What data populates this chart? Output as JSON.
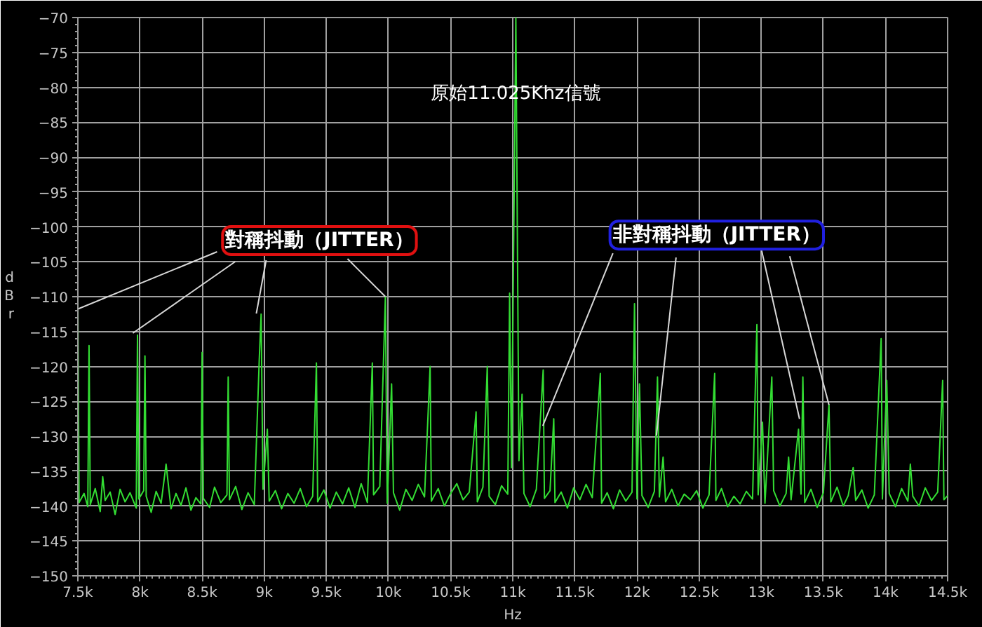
{
  "chart_data": {
    "type": "line",
    "xlabel": "Hz",
    "ylabel": "dBr",
    "xlim": [
      7500,
      14500
    ],
    "ylim": [
      -150,
      -70
    ],
    "xticks": [
      {
        "value": 7500,
        "label": "7.5k"
      },
      {
        "value": 8000,
        "label": "8k"
      },
      {
        "value": 8500,
        "label": "8.5k"
      },
      {
        "value": 9000,
        "label": "9k"
      },
      {
        "value": 9500,
        "label": "9.5k"
      },
      {
        "value": 10000,
        "label": "10k"
      },
      {
        "value": 10500,
        "label": "10.5k"
      },
      {
        "value": 11000,
        "label": "11k"
      },
      {
        "value": 11500,
        "label": "11.5k"
      },
      {
        "value": 12000,
        "label": "12k"
      },
      {
        "value": 12500,
        "label": "12.5k"
      },
      {
        "value": 13000,
        "label": "13k"
      },
      {
        "value": 13500,
        "label": "13.5k"
      },
      {
        "value": 14000,
        "label": "14k"
      },
      {
        "value": 14500,
        "label": "14.5k"
      }
    ],
    "yticks": [
      -70,
      -75,
      -80,
      -85,
      -90,
      -95,
      -100,
      -105,
      -110,
      -115,
      -120,
      -125,
      -130,
      -135,
      -140,
      -145,
      -150
    ],
    "grid": true,
    "color": "#33dd33",
    "x": [
      7500,
      7510,
      7550,
      7580,
      7590,
      7600,
      7640,
      7680,
      7700,
      7720,
      7760,
      7800,
      7840,
      7880,
      7920,
      7970,
      7980,
      7990,
      8030,
      8040,
      8050,
      8090,
      8130,
      8170,
      8210,
      8250,
      8290,
      8330,
      8370,
      8410,
      8450,
      8490,
      8500,
      8510,
      8560,
      8600,
      8650,
      8700,
      8710,
      8720,
      8770,
      8820,
      8870,
      8920,
      8960,
      8975,
      8990,
      9025,
      9040,
      9090,
      9140,
      9190,
      9240,
      9290,
      9340,
      9390,
      9420,
      9430,
      9480,
      9530,
      9580,
      9630,
      9680,
      9730,
      9780,
      9830,
      9870,
      9880,
      9930,
      9975,
      9990,
      10025,
      10040,
      10090,
      10140,
      10190,
      10240,
      10290,
      10335,
      10345,
      10400,
      10450,
      10500,
      10550,
      10600,
      10650,
      10705,
      10715,
      10760,
      10795,
      10810,
      10860,
      10910,
      10960,
      10975,
      10990,
      11025,
      11050,
      11075,
      11090,
      11140,
      11190,
      11245,
      11255,
      11300,
      11330,
      11340,
      11390,
      11440,
      11490,
      11540,
      11590,
      11640,
      11705,
      11715,
      11760,
      11810,
      11860,
      11910,
      11960,
      11980,
      12000,
      12020,
      12040,
      12090,
      12140,
      12165,
      12180,
      12210,
      12230,
      12280,
      12330,
      12380,
      12430,
      12480,
      12530,
      12580,
      12625,
      12635,
      12680,
      12730,
      12780,
      12830,
      12880,
      12930,
      12965,
      12975,
      13010,
      13030,
      13085,
      13100,
      13150,
      13200,
      13220,
      13240,
      13300,
      13320,
      13335,
      13350,
      13400,
      13450,
      13500,
      13545,
      13560,
      13610,
      13660,
      13700,
      13740,
      13760,
      13810,
      13860,
      13910,
      13965,
      13975,
      14010,
      14030,
      14080,
      14130,
      14180,
      14200,
      14220,
      14270,
      14320,
      14370,
      14420,
      14460,
      14470,
      14500
    ],
    "values": [
      -110,
      -139.5,
      -138.2,
      -140.1,
      -117,
      -139.8,
      -137.5,
      -140.8,
      -135.8,
      -139.2,
      -138.0,
      -141.2,
      -137.6,
      -139.4,
      -138.1,
      -140.3,
      -115.5,
      -139.0,
      -137.8,
      -118.5,
      -138.6,
      -140.9,
      -137.9,
      -139.6,
      -134,
      -140.4,
      -138.2,
      -139.9,
      -137.4,
      -140.6,
      -138.8,
      -139.7,
      -118,
      -138.9,
      -140.2,
      -137.3,
      -139.5,
      -138.4,
      -121.5,
      -139.1,
      -137.2,
      -140.5,
      -138.1,
      -139.8,
      -119,
      -112.5,
      -137.6,
      -129,
      -139.3,
      -137.8,
      -140.4,
      -138.2,
      -139.6,
      -137.5,
      -140.1,
      -138.6,
      -119.5,
      -139.4,
      -137.7,
      -140.3,
      -138.0,
      -139.7,
      -137.4,
      -140.2,
      -136.8,
      -139.5,
      -119.5,
      -138.4,
      -137.2,
      -110,
      -139.6,
      -122.5,
      -138.1,
      -140.6,
      -137.6,
      -139.2,
      -136.9,
      -138.7,
      -120,
      -139.3,
      -137.5,
      -140.0,
      -138.2,
      -136.8,
      -139.1,
      -138.0,
      -126.5,
      -139.4,
      -137.3,
      -120,
      -138.6,
      -139.8,
      -137.1,
      -138.3,
      -109.5,
      -134.5,
      -70,
      -133.5,
      -124,
      -138.2,
      -140.1,
      -137.6,
      -120.5,
      -138.9,
      -137.8,
      -127.5,
      -139.5,
      -138.0,
      -140.3,
      -137.4,
      -139.1,
      -136.9,
      -138.8,
      -121,
      -139.6,
      -138.1,
      -140.4,
      -137.7,
      -139.3,
      -138.0,
      -111,
      -139.0,
      -122.5,
      -138.5,
      -140.2,
      -137.9,
      -121.5,
      -138.7,
      -133,
      -139.4,
      -137.6,
      -140.0,
      -138.3,
      -139.1,
      -137.8,
      -140.3,
      -138.4,
      -121,
      -139.2,
      -137.5,
      -140.1,
      -138.6,
      -139.7,
      -137.9,
      -139.0,
      -114,
      -138.4,
      -128,
      -139.6,
      -121.5,
      -137.8,
      -140.0,
      -138.2,
      -133,
      -139.1,
      -129,
      -138.3,
      -121.5,
      -139.5,
      -137.6,
      -140.2,
      -138.1,
      -125.5,
      -139.4,
      -137.3,
      -140.0,
      -138.5,
      -134.5,
      -139.2,
      -137.7,
      -140.3,
      -138.4,
      -116,
      -139.0,
      -122,
      -138.2,
      -140.1,
      -137.5,
      -139.3,
      -134,
      -138.6,
      -140.0,
      -137.4,
      -139.2,
      -138.0,
      -122,
      -139.1,
      -138.5
    ],
    "annotations": [
      {
        "text": "原始11.025Khz信號",
        "x": 11025,
        "y": -81
      },
      {
        "text": "對稱抖動（JITTER）",
        "x": 9975,
        "y": -110
      },
      {
        "text": "非對稱抖動（JITTER）",
        "x": 13545,
        "y": -125.5
      }
    ]
  }
}
